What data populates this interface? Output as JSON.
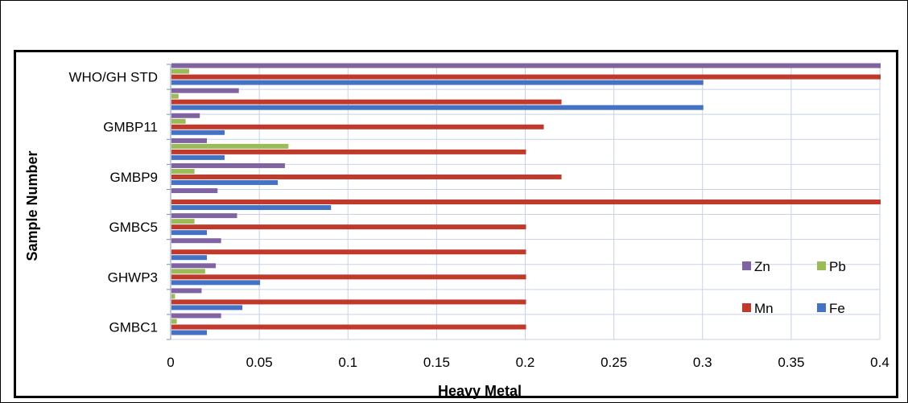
{
  "chart_data": {
    "type": "bar",
    "orientation": "horizontal",
    "title": "",
    "xlabel": "Heavy Metal",
    "ylabel": "Sample Number",
    "xlim": [
      0,
      0.4
    ],
    "x_ticks": [
      "0",
      "0.05",
      "0.1",
      "0.15",
      "0.2",
      "0.25",
      "0.3",
      "0.35",
      "0.4"
    ],
    "grid": true,
    "legend_position": "bottom-right",
    "categories_bottom_to_top": [
      "GMBC1",
      "",
      "GHWP3",
      "",
      "GMBC5",
      "",
      "GMBP9",
      "",
      "GMBP11",
      "",
      "WHO/GH STD"
    ],
    "series": [
      {
        "name": "Fe",
        "color": "#4472C4",
        "values": [
          0.02,
          0.04,
          0.05,
          0.02,
          0.02,
          0.09,
          0.06,
          0.03,
          0.03,
          0.3,
          0.3
        ]
      },
      {
        "name": "Mn",
        "color": "#C0392B",
        "values": [
          0.2,
          0.2,
          0.2,
          0.2,
          0.2,
          0.4,
          0.22,
          0.2,
          0.21,
          0.22,
          0.4
        ]
      },
      {
        "name": "Pb",
        "color": "#9BBB59",
        "values": [
          0.003,
          0.002,
          0.019,
          0.0,
          0.013,
          0.0,
          0.013,
          0.066,
          0.008,
          0.004,
          0.01
        ]
      },
      {
        "name": "Zn",
        "color": "#8064A2",
        "values": [
          0.028,
          0.017,
          0.025,
          0.028,
          0.037,
          0.026,
          0.064,
          0.02,
          0.016,
          0.038,
          0.4
        ]
      }
    ],
    "legend_order": [
      "Zn",
      "Pb",
      "Mn",
      "Fe"
    ]
  }
}
